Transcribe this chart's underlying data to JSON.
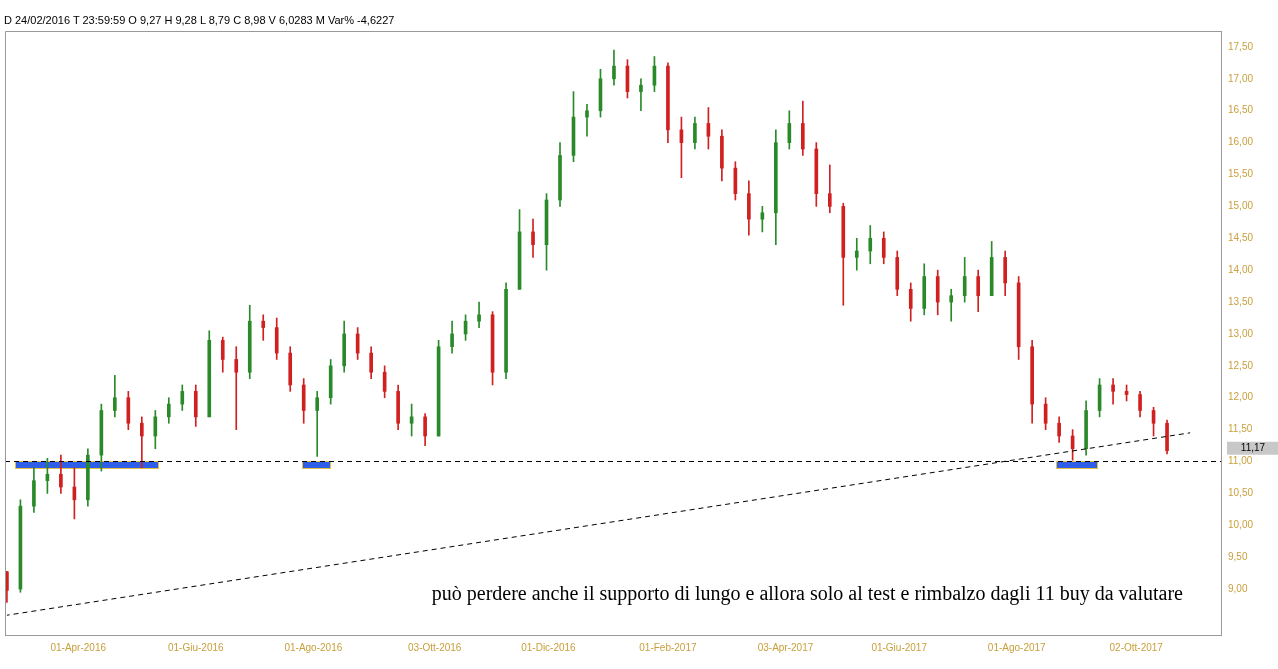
{
  "chart_data": {
    "type": "candlestick",
    "annotations": [
      "D 24/02/2016 T 23:59:59 O 9,27 H 9,28 L 8,79 C 8,98 V 6,0283 M Var% -4,6227",
      "11,17",
      "può perdere anche il supporto di lungo e allora solo al test e rimbalzo dagli 11 buy da valutare"
    ],
    "x": [
      "2016-02-24",
      "2016-03-02",
      "2016-03-09",
      "2016-03-16",
      "2016-03-23",
      "2016-03-30",
      "2016-04-06",
      "2016-04-13",
      "2016-04-20",
      "2016-04-27",
      "2016-05-04",
      "2016-05-11",
      "2016-05-18",
      "2016-05-25",
      "2016-06-01",
      "2016-06-08",
      "2016-06-15",
      "2016-06-22",
      "2016-06-29",
      "2016-07-06",
      "2016-07-13",
      "2016-07-20",
      "2016-07-27",
      "2016-08-03",
      "2016-08-10",
      "2016-08-17",
      "2016-08-24",
      "2016-08-31",
      "2016-09-07",
      "2016-09-14",
      "2016-09-21",
      "2016-09-28",
      "2016-10-05",
      "2016-10-12",
      "2016-10-19",
      "2016-10-26",
      "2016-11-02",
      "2016-11-09",
      "2016-11-16",
      "2016-11-23",
      "2016-11-30",
      "2016-12-07",
      "2016-12-14",
      "2016-12-21",
      "2016-12-28",
      "2017-01-04",
      "2017-01-11",
      "2017-01-18",
      "2017-01-25",
      "2017-02-01",
      "2017-02-08",
      "2017-02-15",
      "2017-02-22",
      "2017-03-01",
      "2017-03-08",
      "2017-03-15",
      "2017-03-22",
      "2017-03-29",
      "2017-04-05",
      "2017-04-12",
      "2017-04-19",
      "2017-04-26",
      "2017-05-03",
      "2017-05-10",
      "2017-05-17",
      "2017-05-24",
      "2017-05-31",
      "2017-06-07",
      "2017-06-14",
      "2017-06-21",
      "2017-06-28",
      "2017-07-05",
      "2017-07-12",
      "2017-07-19",
      "2017-07-26",
      "2017-08-02",
      "2017-08-09",
      "2017-08-16",
      "2017-08-23",
      "2017-08-30",
      "2017-09-06",
      "2017-09-13",
      "2017-09-20",
      "2017-09-27",
      "2017-10-04",
      "2017-10-11",
      "2017-10-18"
    ],
    "ohlc": [
      [
        9.27,
        9.28,
        8.79,
        8.98
      ],
      [
        9.0,
        10.4,
        8.95,
        10.3
      ],
      [
        10.3,
        10.9,
        10.2,
        10.7
      ],
      [
        10.7,
        11.05,
        10.5,
        10.8
      ],
      [
        10.8,
        11.1,
        10.5,
        10.6
      ],
      [
        10.6,
        10.9,
        10.1,
        10.4
      ],
      [
        10.4,
        11.2,
        10.3,
        11.1
      ],
      [
        11.1,
        11.9,
        10.85,
        11.8
      ],
      [
        11.8,
        12.35,
        11.7,
        12.0
      ],
      [
        12.0,
        12.1,
        11.5,
        11.6
      ],
      [
        11.6,
        11.7,
        10.9,
        11.4
      ],
      [
        11.4,
        11.8,
        11.2,
        11.7
      ],
      [
        11.7,
        12.0,
        11.6,
        11.9
      ],
      [
        11.9,
        12.2,
        11.8,
        12.1
      ],
      [
        12.1,
        12.2,
        11.55,
        11.7
      ],
      [
        11.7,
        13.05,
        11.7,
        12.9
      ],
      [
        12.9,
        12.95,
        12.4,
        12.6
      ],
      [
        12.6,
        12.8,
        11.5,
        12.4
      ],
      [
        12.4,
        13.45,
        12.3,
        13.2
      ],
      [
        13.2,
        13.3,
        12.9,
        13.1
      ],
      [
        13.1,
        13.25,
        12.6,
        12.7
      ],
      [
        12.7,
        12.8,
        12.1,
        12.2
      ],
      [
        12.2,
        12.3,
        11.6,
        11.8
      ],
      [
        11.8,
        12.1,
        11.08,
        12.0
      ],
      [
        12.0,
        12.6,
        11.9,
        12.5
      ],
      [
        12.5,
        13.2,
        12.4,
        13.0
      ],
      [
        13.0,
        13.1,
        12.6,
        12.7
      ],
      [
        12.7,
        12.8,
        12.3,
        12.4
      ],
      [
        12.4,
        12.5,
        12.0,
        12.1
      ],
      [
        12.1,
        12.2,
        11.5,
        11.6
      ],
      [
        11.6,
        11.9,
        11.4,
        11.7
      ],
      [
        11.7,
        11.75,
        11.25,
        11.4
      ],
      [
        11.4,
        12.9,
        11.4,
        12.8
      ],
      [
        12.8,
        13.2,
        12.7,
        13.0
      ],
      [
        13.0,
        13.3,
        12.9,
        13.2
      ],
      [
        13.2,
        13.5,
        13.1,
        13.3
      ],
      [
        13.3,
        13.35,
        12.2,
        12.4
      ],
      [
        12.4,
        13.8,
        12.3,
        13.7
      ],
      [
        13.7,
        14.95,
        13.7,
        14.6
      ],
      [
        14.6,
        14.8,
        14.2,
        14.4
      ],
      [
        14.4,
        15.2,
        14.0,
        15.1
      ],
      [
        15.1,
        16.0,
        15.0,
        15.8
      ],
      [
        15.8,
        16.8,
        15.7,
        16.4
      ],
      [
        16.4,
        16.6,
        16.1,
        16.5
      ],
      [
        16.5,
        17.15,
        16.4,
        17.0
      ],
      [
        17.0,
        17.45,
        16.9,
        17.2
      ],
      [
        17.2,
        17.3,
        16.7,
        16.8
      ],
      [
        16.8,
        17.0,
        16.5,
        16.9
      ],
      [
        16.9,
        17.35,
        16.8,
        17.2
      ],
      [
        17.2,
        17.25,
        16.0,
        16.2
      ],
      [
        16.2,
        16.4,
        15.45,
        16.0
      ],
      [
        16.0,
        16.4,
        15.9,
        16.3
      ],
      [
        16.3,
        16.55,
        15.9,
        16.1
      ],
      [
        16.1,
        16.2,
        15.4,
        15.6
      ],
      [
        15.6,
        15.7,
        15.1,
        15.2
      ],
      [
        15.2,
        15.4,
        14.55,
        14.8
      ],
      [
        14.8,
        15.0,
        14.6,
        14.9
      ],
      [
        14.9,
        16.2,
        14.4,
        16.0
      ],
      [
        16.0,
        16.5,
        15.9,
        16.3
      ],
      [
        16.3,
        16.65,
        15.8,
        15.9
      ],
      [
        15.9,
        16.0,
        15.0,
        15.2
      ],
      [
        15.2,
        15.65,
        14.9,
        15.0
      ],
      [
        15.0,
        15.05,
        13.45,
        14.2
      ],
      [
        14.2,
        14.5,
        14.0,
        14.3
      ],
      [
        14.3,
        14.7,
        14.1,
        14.5
      ],
      [
        14.5,
        14.6,
        14.1,
        14.2
      ],
      [
        14.2,
        14.3,
        13.6,
        13.7
      ],
      [
        13.7,
        13.8,
        13.2,
        13.4
      ],
      [
        13.4,
        14.1,
        13.3,
        13.9
      ],
      [
        13.9,
        14.0,
        13.3,
        13.5
      ],
      [
        13.5,
        13.7,
        13.2,
        13.6
      ],
      [
        13.6,
        14.2,
        13.5,
        13.9
      ],
      [
        13.9,
        14.0,
        13.35,
        13.6
      ],
      [
        13.6,
        14.45,
        13.6,
        14.2
      ],
      [
        14.2,
        14.3,
        13.6,
        13.8
      ],
      [
        13.8,
        13.9,
        12.6,
        12.8
      ],
      [
        12.8,
        12.9,
        11.6,
        11.9
      ],
      [
        11.9,
        12.0,
        11.5,
        11.6
      ],
      [
        11.6,
        11.7,
        11.3,
        11.4
      ],
      [
        11.4,
        11.5,
        11.02,
        11.2
      ],
      [
        11.2,
        11.95,
        11.1,
        11.8
      ],
      [
        11.8,
        12.3,
        11.7,
        12.2
      ],
      [
        12.2,
        12.3,
        11.9,
        12.1
      ],
      [
        12.1,
        12.2,
        11.95,
        12.05
      ],
      [
        12.05,
        12.1,
        11.7,
        11.8
      ],
      [
        11.8,
        11.85,
        11.4,
        11.6
      ],
      [
        11.6,
        11.65,
        11.12,
        11.17
      ]
    ],
    "colors": [
      "#d02020",
      "#2a8a2a",
      "#2a8a2a",
      "#2a8a2a",
      "#d02020",
      "#d02020",
      "#2a8a2a",
      "#2a8a2a",
      "#2a8a2a",
      "#d02020",
      "#d02020",
      "#2a8a2a",
      "#2a8a2a",
      "#2a8a2a",
      "#d02020",
      "#2a8a2a",
      "#d02020",
      "#d02020",
      "#2a8a2a",
      "#d02020",
      "#d02020",
      "#d02020",
      "#d02020",
      "#2a8a2a",
      "#2a8a2a",
      "#2a8a2a",
      "#d02020",
      "#d02020",
      "#d02020",
      "#d02020",
      "#2a8a2a",
      "#d02020",
      "#2a8a2a",
      "#2a8a2a",
      "#2a8a2a",
      "#2a8a2a",
      "#d02020",
      "#2a8a2a",
      "#2a8a2a",
      "#d02020",
      "#2a8a2a",
      "#2a8a2a",
      "#2a8a2a",
      "#2a8a2a",
      "#2a8a2a",
      "#2a8a2a",
      "#d02020",
      "#2a8a2a",
      "#2a8a2a",
      "#d02020",
      "#d02020",
      "#2a8a2a",
      "#d02020",
      "#d02020",
      "#d02020",
      "#d02020",
      "#2a8a2a",
      "#2a8a2a",
      "#2a8a2a",
      "#d02020",
      "#d02020",
      "#d02020",
      "#d02020",
      "#2a8a2a",
      "#2a8a2a",
      "#d02020",
      "#d02020",
      "#d02020",
      "#2a8a2a",
      "#d02020",
      "#2a8a2a",
      "#2a8a2a",
      "#d02020",
      "#2a8a2a",
      "#d02020",
      "#d02020",
      "#d02020",
      "#d02020",
      "#d02020",
      "#d02020",
      "#2a8a2a",
      "#2a8a2a",
      "#d02020",
      "#d02020",
      "#d02020",
      "#d02020",
      "#d02020"
    ],
    "series": [
      {
        "type": "line",
        "x": [
          "2016-02-24",
          "2017-10-30"
        ],
        "values": [
          8.59,
          11.45
        ],
        "color": "#000000",
        "line_style": "dashed",
        "marker": "none"
      }
    ],
    "ref_lines": [
      {
        "axis": "y",
        "value": 11,
        "color": "#000000",
        "line_style": "dashed"
      }
    ],
    "xlim": [
      "2016-02-23",
      "2017-11-15"
    ],
    "xticks": [
      {
        "value": "2016-04-01",
        "label": "01-Apr-2016"
      },
      {
        "value": "2016-06-01",
        "label": "01-Giu-2016"
      },
      {
        "value": "2016-08-01",
        "label": "01-Ago-2016"
      },
      {
        "value": "2016-10-03",
        "label": "03-Ott-2016"
      },
      {
        "value": "2016-12-01",
        "label": "01-Dic-2016"
      },
      {
        "value": "2017-02-01",
        "label": "01-Feb-2017"
      },
      {
        "value": "2017-04-03",
        "label": "03-Apr-2017"
      },
      {
        "value": "2017-06-01",
        "label": "01-Giu-2017"
      },
      {
        "value": "2017-08-01",
        "label": "01-Ago-2017"
      },
      {
        "value": "2017-10-02",
        "label": "02-Ott-2017"
      }
    ],
    "ylim": [
      8.28,
      17.75
    ],
    "yticks": [
      {
        "value": 9,
        "label": "9,00"
      },
      {
        "value": 9.5,
        "label": "9,50"
      },
      {
        "value": 10,
        "label": "10,00"
      },
      {
        "value": 10.5,
        "label": "10,50"
      },
      {
        "value": 11,
        "label": "11,00"
      },
      {
        "value": 11.5,
        "label": "11,50"
      },
      {
        "value": 12,
        "label": "12,00"
      },
      {
        "value": 12.5,
        "label": "12,50"
      },
      {
        "value": 13,
        "label": "13,00"
      },
      {
        "value": 13.5,
        "label": "13,50"
      },
      {
        "value": 14,
        "label": "14,00"
      },
      {
        "value": 14.5,
        "label": "14,50"
      },
      {
        "value": 15,
        "label": "15,00"
      },
      {
        "value": 15.5,
        "label": "15,50"
      },
      {
        "value": 16,
        "label": "16,00"
      },
      {
        "value": 16.5,
        "label": "16,50"
      },
      {
        "value": 17,
        "label": "17,00"
      },
      {
        "value": 17.5,
        "label": "17,50"
      }
    ],
    "grid": false,
    "legend": false
  }
}
